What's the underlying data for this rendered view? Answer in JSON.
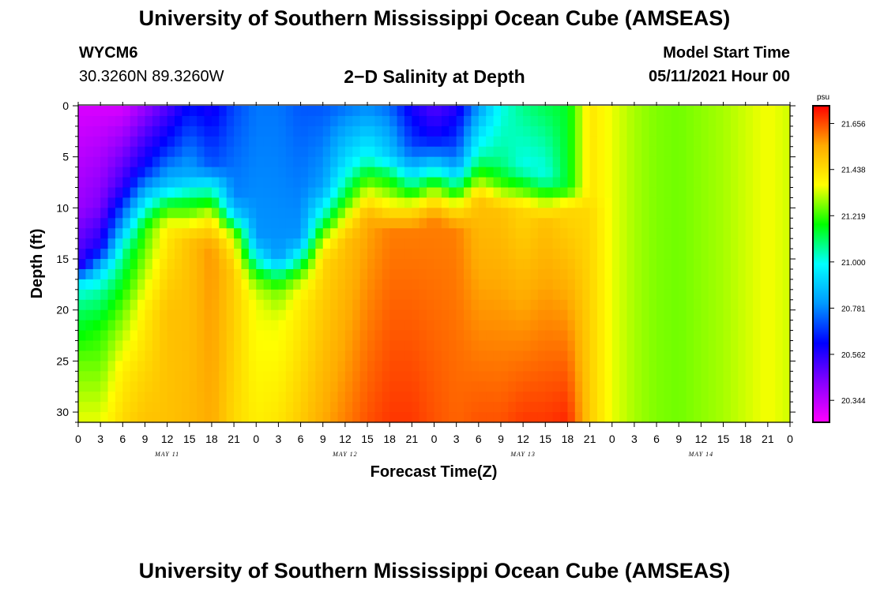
{
  "header": {
    "title": "University of Southern Mississippi Ocean Cube (AMSEAS)",
    "station": "WYCM6",
    "coords": "30.3260N  89.3260W",
    "subtitle": "2−D Salinity at Depth",
    "start_label": "Model Start Time",
    "start_value": "05/11/2021 Hour 00"
  },
  "footer": {
    "title": "University of Southern Mississippi Ocean Cube (AMSEAS)"
  },
  "chart_data": {
    "type": "heatmap",
    "title": "2−D Salinity at Depth",
    "xlabel": "Forecast Time(Z)",
    "ylabel": "Depth (ft)",
    "xlim": [
      0,
      96
    ],
    "ylim": [
      31,
      0
    ],
    "x_ticks_hours": [
      0,
      3,
      6,
      9,
      12,
      15,
      18,
      21,
      24,
      27,
      30,
      33,
      36,
      39,
      42,
      45,
      48,
      51,
      54,
      57,
      60,
      63,
      66,
      69,
      72,
      75,
      78,
      81,
      84,
      87,
      90,
      93,
      96
    ],
    "x_tick_labels": [
      "0",
      "3",
      "6",
      "9",
      "12",
      "15",
      "18",
      "21",
      "0",
      "3",
      "6",
      "9",
      "12",
      "15",
      "18",
      "21",
      "0",
      "3",
      "6",
      "9",
      "12",
      "15",
      "18",
      "21",
      "0",
      "3",
      "6",
      "9",
      "12",
      "15",
      "18",
      "21",
      "0"
    ],
    "y_ticks": [
      0,
      5,
      10,
      15,
      20,
      25,
      30
    ],
    "y_tick_labels": [
      "0",
      "5",
      "10",
      "15",
      "20",
      "25",
      "30"
    ],
    "days": [
      {
        "label": "MAY 11",
        "hour": 12
      },
      {
        "label": "MAY 12",
        "hour": 36
      },
      {
        "label": "MAY 13",
        "hour": 60
      },
      {
        "label": "MAY 14",
        "hour": 84
      }
    ],
    "colorbar": {
      "unit": "psu",
      "min": 20.24,
      "max": 21.74,
      "ticks": [
        21.656,
        21.438,
        21.219,
        21.0,
        20.781,
        20.562,
        20.344
      ],
      "tick_labels": [
        "21.656",
        "21.438",
        "21.219",
        "21.000",
        "20.781",
        "20.562",
        "20.344"
      ],
      "colors": [
        "#ff00ff",
        "#8800ff",
        "#0000ff",
        "#0099ff",
        "#00ffff",
        "#00ff00",
        "#ffff00",
        "#ffaa00",
        "#ff0000"
      ]
    },
    "time_hours": [
      0,
      3,
      6,
      9,
      12,
      15,
      18,
      21,
      24,
      27,
      30,
      33,
      36,
      39,
      42,
      45,
      48,
      51,
      54,
      57,
      60,
      63,
      66,
      69,
      72,
      75,
      78,
      81,
      84,
      87,
      90,
      93,
      96
    ],
    "profiles": [
      {
        "depth": [
          0,
          10,
          16,
          17,
          18,
          20,
          25,
          31
        ],
        "salinity": [
          20.3,
          20.4,
          20.55,
          20.9,
          21.0,
          21.1,
          21.25,
          21.35
        ]
      },
      {
        "depth": [
          0,
          10,
          14,
          16,
          18,
          22,
          31
        ],
        "salinity": [
          20.3,
          20.45,
          20.6,
          20.9,
          21.05,
          21.2,
          21.35
        ]
      },
      {
        "depth": [
          0,
          8,
          12,
          14,
          20,
          26,
          31
        ],
        "salinity": [
          20.3,
          20.55,
          20.85,
          21.05,
          21.25,
          21.4,
          21.45
        ]
      },
      {
        "depth": [
          0,
          6,
          10,
          12,
          20,
          31
        ],
        "salinity": [
          20.4,
          20.62,
          21.0,
          21.2,
          21.4,
          21.5
        ]
      },
      {
        "depth": [
          0,
          4,
          8,
          10,
          12,
          20,
          31
        ],
        "salinity": [
          20.5,
          20.65,
          20.9,
          21.2,
          21.4,
          21.5,
          21.5
        ]
      },
      {
        "depth": [
          0,
          7,
          9,
          11,
          13,
          31
        ],
        "salinity": [
          20.62,
          20.85,
          21.1,
          21.3,
          21.5,
          21.52
        ]
      },
      {
        "depth": [
          0,
          6,
          8,
          10,
          11,
          14,
          31
        ],
        "salinity": [
          20.58,
          20.72,
          21.0,
          21.25,
          21.4,
          21.58,
          21.55
        ]
      },
      {
        "depth": [
          0,
          9,
          11,
          12,
          13,
          16,
          31
        ],
        "salinity": [
          20.7,
          20.78,
          20.95,
          21.2,
          21.35,
          21.48,
          21.45
        ]
      },
      {
        "depth": [
          0,
          13,
          15,
          17,
          19,
          31
        ],
        "salinity": [
          20.76,
          20.8,
          21.0,
          21.25,
          21.35,
          21.4
        ]
      },
      {
        "depth": [
          0,
          15,
          16,
          18,
          21,
          31
        ],
        "salinity": [
          20.76,
          20.8,
          21.0,
          21.25,
          21.35,
          21.42
        ]
      },
      {
        "depth": [
          0,
          13,
          15,
          17,
          19,
          31
        ],
        "salinity": [
          20.72,
          20.8,
          21.05,
          21.3,
          21.4,
          21.48
        ]
      },
      {
        "depth": [
          0,
          8,
          11,
          13,
          15,
          31
        ],
        "salinity": [
          20.72,
          20.82,
          21.05,
          21.3,
          21.45,
          21.55
        ]
      },
      {
        "depth": [
          0,
          6,
          9,
          11,
          13,
          31
        ],
        "salinity": [
          20.75,
          20.95,
          21.15,
          21.35,
          21.5,
          21.6
        ]
      },
      {
        "depth": [
          0,
          5,
          7,
          9,
          11,
          31
        ],
        "salinity": [
          20.78,
          21.0,
          21.2,
          21.4,
          21.55,
          21.65
        ]
      },
      {
        "depth": [
          0,
          5,
          7,
          10,
          12,
          31
        ],
        "salinity": [
          20.74,
          20.9,
          21.15,
          21.4,
          21.6,
          21.68
        ]
      },
      {
        "depth": [
          0,
          4,
          6,
          8,
          10,
          12,
          31
        ],
        "salinity": [
          20.58,
          20.7,
          20.85,
          21.1,
          21.4,
          21.6,
          21.68
        ]
      },
      {
        "depth": [
          0,
          3,
          5,
          7,
          9,
          11,
          31
        ],
        "salinity": [
          20.5,
          20.6,
          20.8,
          21.1,
          21.4,
          21.6,
          21.65
        ]
      },
      {
        "depth": [
          0,
          4,
          6,
          8,
          10,
          12,
          31
        ],
        "salinity": [
          20.56,
          20.7,
          20.82,
          21.1,
          21.4,
          21.6,
          21.63
        ]
      },
      {
        "depth": [
          0,
          3,
          5,
          7,
          9,
          31
        ],
        "salinity": [
          20.8,
          20.95,
          21.05,
          21.25,
          21.5,
          21.65
        ]
      },
      {
        "depth": [
          0,
          4,
          6,
          8,
          10,
          31
        ],
        "salinity": [
          21.0,
          21.05,
          21.1,
          21.25,
          21.5,
          21.65
        ]
      },
      {
        "depth": [
          0,
          6,
          8,
          10,
          31
        ],
        "salinity": [
          21.08,
          21.0,
          21.2,
          21.45,
          21.68
        ]
      },
      {
        "depth": [
          0,
          7,
          9,
          11,
          31
        ],
        "salinity": [
          21.12,
          21.0,
          21.25,
          21.5,
          21.68
        ]
      },
      {
        "depth": [
          0,
          8,
          10,
          31
        ],
        "salinity": [
          21.15,
          21.15,
          21.45,
          21.7
        ]
      },
      {
        "depth": [
          0,
          9,
          10,
          31
        ],
        "salinity": [
          21.42,
          21.42,
          21.45,
          21.48
        ]
      },
      {
        "depth": [
          0,
          31
        ],
        "salinity": [
          21.35,
          21.35
        ]
      },
      {
        "depth": [
          0,
          31
        ],
        "salinity": [
          21.3,
          21.3
        ]
      },
      {
        "depth": [
          0,
          31
        ],
        "salinity": [
          21.27,
          21.27
        ]
      },
      {
        "depth": [
          0,
          31
        ],
        "salinity": [
          21.26,
          21.26
        ]
      },
      {
        "depth": [
          0,
          31
        ],
        "salinity": [
          21.28,
          21.28
        ]
      },
      {
        "depth": [
          0,
          31
        ],
        "salinity": [
          21.3,
          21.3
        ]
      },
      {
        "depth": [
          0,
          31
        ],
        "salinity": [
          21.33,
          21.33
        ]
      },
      {
        "depth": [
          0,
          31
        ],
        "salinity": [
          21.36,
          21.36
        ]
      },
      {
        "depth": [
          0,
          31
        ],
        "salinity": [
          21.33,
          21.33
        ]
      }
    ]
  }
}
